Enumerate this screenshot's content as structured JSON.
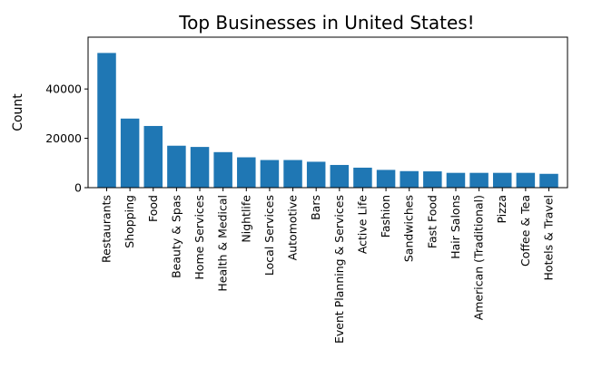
{
  "chart_data": {
    "type": "bar",
    "title": "Top Businesses in United States!",
    "xlabel": "",
    "ylabel": "Count",
    "ylim": [
      0,
      61000
    ],
    "yticks": [
      0,
      20000,
      40000
    ],
    "grid": false,
    "color": "#1f77b4",
    "categories": [
      "Restaurants",
      "Shopping",
      "Food",
      "Beauty & Spas",
      "Home Services",
      "Health & Medical",
      "Nightlife",
      "Local Services",
      "Automotive",
      "Bars",
      "Event Planning & Services",
      "Active Life",
      "Fashion",
      "Sandwiches",
      "Fast Food",
      "Hair Salons",
      "American (Traditional)",
      "Pizza",
      "Coffee & Tea",
      "Hotels & Travel"
    ],
    "values": [
      54600,
      28000,
      25000,
      17000,
      16500,
      14400,
      12300,
      11200,
      11200,
      10500,
      9200,
      8100,
      7200,
      6700,
      6600,
      6000,
      6000,
      6000,
      6000,
      5600
    ]
  }
}
